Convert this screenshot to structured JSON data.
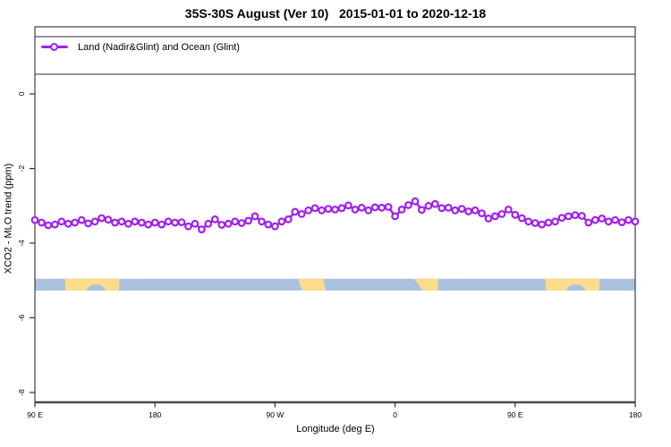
{
  "title": "35S-30S August (Ver 10)   2015-01-01 to 2020-12-18",
  "legend": {
    "label": "Land (Nadir&Glint) and Ocean (Glint)"
  },
  "colors": {
    "series_purple": "#A020F0",
    "ocean_band": "#a9c2df",
    "land_band": "#fbdc8b",
    "axis_line": "#4a4a4a",
    "box_line": "#2e2e2e",
    "text": "#000000"
  },
  "chart_data": {
    "type": "line",
    "title": "35S-30S August (Ver 10)   2015-01-01 to 2020-12-18",
    "xlabel": "Longitude (deg E)",
    "ylabel": "XCO2 - MLO trend (ppm)",
    "xlim": [
      90,
      540
    ],
    "ylim": [
      -8.3,
      1.8
    ],
    "grid": false,
    "legend_position": "top-left-full-width-box",
    "x_ticks": [
      {
        "value": 90,
        "label": "90 E"
      },
      {
        "value": 180,
        "label": "180"
      },
      {
        "value": 270,
        "label": "90 W"
      },
      {
        "value": 360,
        "label": "0"
      },
      {
        "value": 450,
        "label": "90 E"
      },
      {
        "value": 540,
        "label": "180"
      }
    ],
    "y_ticks": [
      {
        "value": 0,
        "label": "0"
      },
      {
        "value": -2,
        "label": "-2"
      },
      {
        "value": -4,
        "label": "-4"
      },
      {
        "value": -6,
        "label": "-6"
      },
      {
        "value": -8,
        "label": "-8"
      }
    ],
    "series": [
      {
        "name": "Land (Nadir&Glint) and Ocean (Glint)",
        "color": "#A020F0",
        "marker": "open-circle",
        "x": [
          90,
          95,
          100,
          105,
          110,
          115,
          120,
          125,
          130,
          135,
          140,
          145,
          150,
          155,
          160,
          165,
          170,
          175,
          180,
          185,
          190,
          195,
          200,
          205,
          210,
          215,
          220,
          225,
          230,
          235,
          240,
          245,
          250,
          255,
          260,
          265,
          270,
          275,
          280,
          285,
          290,
          295,
          300,
          305,
          310,
          315,
          320,
          325,
          330,
          335,
          340,
          345,
          350,
          355,
          360,
          365,
          370,
          375,
          380,
          385,
          390,
          395,
          400,
          405,
          410,
          415,
          420,
          425,
          430,
          435,
          440,
          445,
          450,
          455,
          460,
          465,
          470,
          475,
          480,
          485,
          490,
          495,
          500,
          505,
          510,
          515,
          520,
          525,
          530,
          535,
          540
        ],
        "y": [
          -3.38,
          -3.45,
          -3.52,
          -3.5,
          -3.42,
          -3.48,
          -3.45,
          -3.38,
          -3.47,
          -3.42,
          -3.33,
          -3.37,
          -3.45,
          -3.42,
          -3.48,
          -3.42,
          -3.45,
          -3.5,
          -3.45,
          -3.5,
          -3.42,
          -3.45,
          -3.44,
          -3.55,
          -3.48,
          -3.63,
          -3.48,
          -3.36,
          -3.51,
          -3.48,
          -3.42,
          -3.46,
          -3.4,
          -3.28,
          -3.42,
          -3.5,
          -3.55,
          -3.42,
          -3.36,
          -3.16,
          -3.22,
          -3.12,
          -3.06,
          -3.12,
          -3.08,
          -3.1,
          -3.06,
          -2.99,
          -3.1,
          -3.05,
          -3.12,
          -3.04,
          -3.05,
          -3.03,
          -3.28,
          -3.1,
          -2.98,
          -2.88,
          -3.11,
          -3.0,
          -2.95,
          -3.06,
          -3.05,
          -3.12,
          -3.08,
          -3.15,
          -3.12,
          -3.2,
          -3.34,
          -3.28,
          -3.22,
          -3.1,
          -3.24,
          -3.33,
          -3.42,
          -3.46,
          -3.5,
          -3.45,
          -3.42,
          -3.32,
          -3.28,
          -3.25,
          -3.27,
          -3.45,
          -3.38,
          -3.34,
          -3.42,
          -3.38,
          -3.44,
          -3.38,
          -3.42
        ]
      }
    ],
    "map_band": {
      "description": "land/ocean strip for latitude band 35S-30S",
      "y_range": [
        -4.95,
        -5.27
      ],
      "ocean_color": "#a9c2df",
      "land_color": "#fbdc8b",
      "ocean_extent": [
        90,
        540
      ],
      "land_segments": [
        {
          "name": "australia",
          "x_trapezoid": [
            112.5,
            153.5,
            153.0,
            113.0
          ]
        },
        {
          "name": "south-america",
          "x_trapezoid": [
            287.0,
            306.0,
            308.0,
            290.5
          ]
        },
        {
          "name": "southern-africa",
          "x_trapezoid": [
            374.0,
            392.5,
            392.0,
            381.0
          ]
        },
        {
          "name": "australia-wrap",
          "x_trapezoid": [
            472.5,
            513.5,
            513.0,
            473.0
          ]
        }
      ],
      "ocean_notches": [
        {
          "name": "great-australian-bight",
          "center": 135.8,
          "rx": 7.4
        },
        {
          "name": "great-australian-bight-wrap",
          "center": 495.5,
          "rx": 7.4
        }
      ]
    }
  }
}
